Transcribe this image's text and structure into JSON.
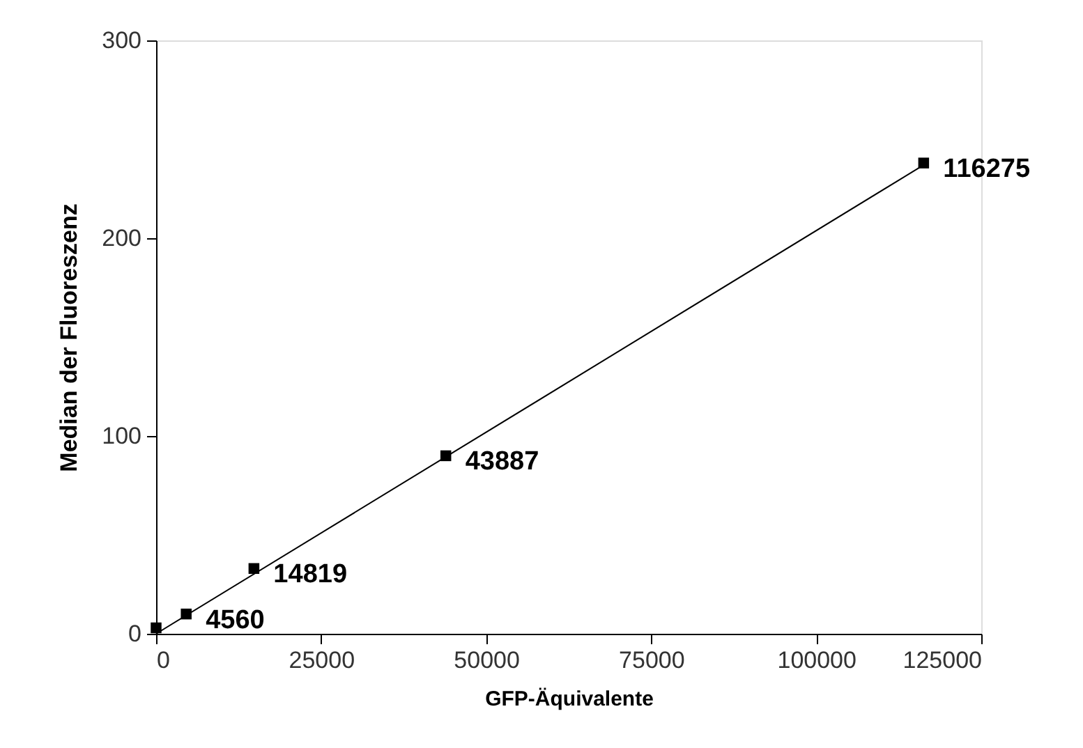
{
  "chart_data": {
    "type": "scatter",
    "xlabel": "GFP-Äquivalente",
    "ylabel": "Median der Fluoreszenz",
    "xlim": [
      0,
      125000
    ],
    "xticks": [
      0,
      25000,
      50000,
      75000,
      100000,
      125000
    ],
    "ylim": [
      0,
      300
    ],
    "yticks": [
      0,
      100,
      200,
      300
    ],
    "grid": false,
    "marker": "square",
    "series": [
      {
        "color": "#000000",
        "x": [
          0,
          4560,
          14819,
          43887,
          116275
        ],
        "values": [
          3,
          10,
          33,
          90,
          238
        ]
      },
      {
        "type": "line",
        "color": "#000000",
        "line_style": "solid",
        "marker": "none",
        "x": [
          0,
          116275
        ],
        "values": [
          0,
          237
        ]
      }
    ],
    "annotations": [
      {
        "text": "4560",
        "x": 4560,
        "y": 10
      },
      {
        "text": "14819",
        "x": 14819,
        "y": 33
      },
      {
        "text": "43887",
        "x": 43887,
        "y": 90
      },
      {
        "text": "116275",
        "x": 116275,
        "y": 238
      }
    ]
  }
}
